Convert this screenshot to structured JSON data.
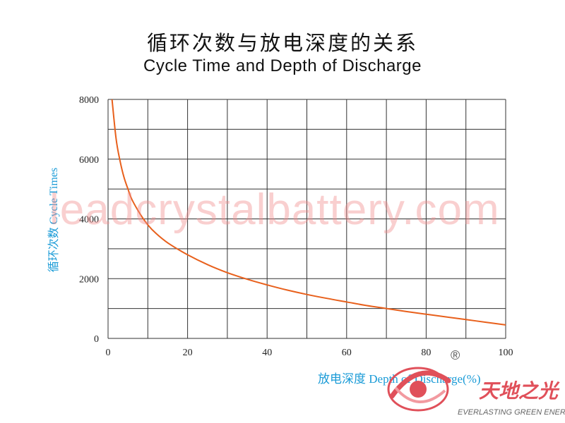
{
  "chart_data": {
    "type": "line",
    "title": "循环次数与放电深度的关系",
    "subtitle": "Cycle Time and Depth of Discharge",
    "xlabel": "放电深度 Depth of   Discharge(%)",
    "ylabel": "循环次数   Cycle Times",
    "xlim": [
      0,
      100
    ],
    "ylim": [
      0,
      8000
    ],
    "x_ticks": [
      "0",
      "20",
      "40",
      "60",
      "80",
      "100"
    ],
    "y_ticks": [
      "0",
      "2000",
      "4000",
      "6000",
      "8000"
    ],
    "grid": true,
    "series": [
      {
        "color": "#e8601c",
        "x": [
          1,
          2,
          3,
          4,
          5,
          6,
          8,
          10,
          12,
          15,
          20,
          25,
          30,
          35,
          40,
          45,
          50,
          55,
          60,
          65,
          70,
          75,
          80,
          85,
          90,
          95,
          100
        ],
        "y": [
          8000,
          6700,
          5950,
          5400,
          5000,
          4650,
          4180,
          3800,
          3520,
          3200,
          2800,
          2470,
          2200,
          1980,
          1790,
          1620,
          1470,
          1340,
          1220,
          1100,
          1000,
          900,
          810,
          720,
          630,
          540,
          450
        ]
      }
    ]
  },
  "watermark": "leadcrystalbattery.com",
  "logo": {
    "name_cn": "天地之光",
    "name_en": "EVERLASTING GREEN ENERGY",
    "registered_mark": "®"
  }
}
